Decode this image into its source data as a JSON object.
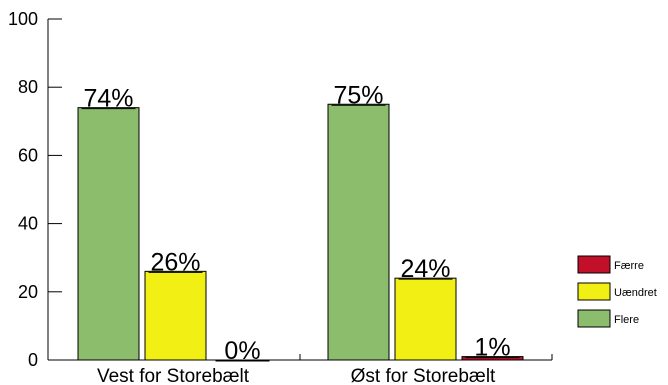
{
  "chart_data": {
    "type": "bar",
    "title": "",
    "xlabel": "",
    "ylabel": "",
    "ylim": [
      0,
      100
    ],
    "yticks": [
      0,
      20,
      40,
      60,
      80,
      100
    ],
    "categories": [
      "Vest for Storebælt",
      "Øst for Storebælt"
    ],
    "series": [
      {
        "name": "Flere",
        "color": "#8cbd6c",
        "values": [
          74,
          75
        ],
        "labels": [
          "74%",
          "75%"
        ]
      },
      {
        "name": "Uændret",
        "color": "#f2ef14",
        "values": [
          26,
          24
        ],
        "labels": [
          "26%",
          "24%"
        ]
      },
      {
        "name": "Færre",
        "color": "#c2102a",
        "values": [
          0,
          1
        ],
        "labels": [
          "0%",
          "1%"
        ]
      }
    ],
    "legend": {
      "placement": "right",
      "entries": [
        {
          "name": "Færre",
          "color": "#c2102a"
        },
        {
          "name": "Uændret",
          "color": "#f2ef14"
        },
        {
          "name": "Flere",
          "color": "#8cbd6c"
        }
      ]
    },
    "grid": false
  }
}
